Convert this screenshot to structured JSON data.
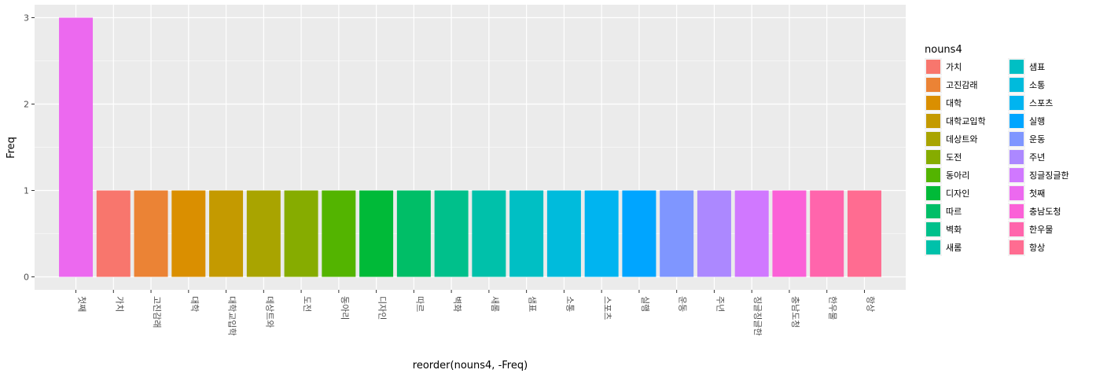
{
  "chart_data": {
    "type": "bar",
    "title": "",
    "xlabel": "reorder(nouns4, -Freq)",
    "ylabel": "Freq",
    "ylim": [
      -0.15,
      3.15
    ],
    "yticks": [
      0,
      1,
      2,
      3
    ],
    "grid": true,
    "legend_position": "right",
    "legend_title": "nouns4",
    "categories": [
      "첫째",
      "가치",
      "고진감래",
      "대학",
      "대학교입학",
      "데상트와",
      "도전",
      "동아리",
      "디자인",
      "따르",
      "벽화",
      "새롬",
      "샘표",
      "소통",
      "스포츠",
      "실행",
      "운동",
      "주년",
      "징글징글한",
      "충남도청",
      "한우물",
      "항상"
    ],
    "values": [
      3,
      1,
      1,
      1,
      1,
      1,
      1,
      1,
      1,
      1,
      1,
      1,
      1,
      1,
      1,
      1,
      1,
      1,
      1,
      1,
      1,
      1
    ],
    "legend_items": [
      "가치",
      "고진감래",
      "대학",
      "대학교입학",
      "데상트와",
      "도전",
      "동아리",
      "디자인",
      "따르",
      "벽화",
      "새롬",
      "샘표",
      "소통",
      "스포츠",
      "실행",
      "운동",
      "주년",
      "징글징글한",
      "첫째",
      "충남도청",
      "한우물",
      "항상"
    ],
    "colors": {
      "가치": "#F8766D",
      "고진감래": "#EB8335",
      "대학": "#DA8F00",
      "대학교입학": "#C49A00",
      "데상트와": "#A9A400",
      "도전": "#86AC00",
      "동아리": "#53B400",
      "디자인": "#00BA38",
      "따르": "#00BE67",
      "벽화": "#00C08B",
      "새롬": "#00C1AA",
      "샘표": "#00BFC4",
      "소통": "#00BBDC",
      "스포츠": "#00B4F0",
      "실행": "#00A5FF",
      "운동": "#7F96FF",
      "주년": "#AC88FF",
      "징글징글한": "#D078FF",
      "첫째": "#EC69EF",
      "충남도청": "#FB61D7",
      "한우물": "#FF65AC",
      "항상": "#FF6C91"
    },
    "panel_background": "#EBEBEB",
    "grid_color": "#FFFFFF"
  }
}
